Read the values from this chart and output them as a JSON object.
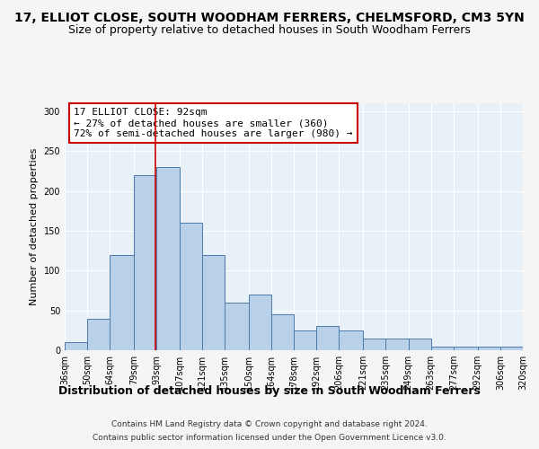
{
  "title": "17, ELLIOT CLOSE, SOUTH WOODHAM FERRERS, CHELMSFORD, CM3 5YN",
  "subtitle": "Size of property relative to detached houses in South Woodham Ferrers",
  "xlabel": "Distribution of detached houses by size in South Woodham Ferrers",
  "ylabel": "Number of detached properties",
  "footer_line1": "Contains HM Land Registry data © Crown copyright and database right 2024.",
  "footer_line2": "Contains public sector information licensed under the Open Government Licence v3.0.",
  "annotation_line1": "17 ELLIOT CLOSE: 92sqm",
  "annotation_line2": "← 27% of detached houses are smaller (360)",
  "annotation_line3": "72% of semi-detached houses are larger (980) →",
  "property_size": 92,
  "bar_edges": [
    36,
    50,
    64,
    79,
    93,
    107,
    121,
    135,
    150,
    164,
    178,
    192,
    206,
    221,
    235,
    249,
    263,
    277,
    292,
    306,
    320
  ],
  "bar_heights": [
    10,
    40,
    120,
    220,
    230,
    160,
    120,
    60,
    70,
    45,
    25,
    30,
    25,
    15,
    15,
    15,
    5,
    5,
    5,
    5
  ],
  "bar_color": "#b8d0e8",
  "bar_edge_color": "#4a7aab",
  "vline_color": "#cc0000",
  "vline_x": 92,
  "annotation_box_color": "#cc0000",
  "bg_color": "#e8f0f8",
  "fig_bg_color": "#f5f5f5",
  "ylim": [
    0,
    310
  ],
  "yticks": [
    0,
    50,
    100,
    150,
    200,
    250,
    300
  ],
  "title_fontsize": 10,
  "subtitle_fontsize": 9,
  "xlabel_fontsize": 9,
  "ylabel_fontsize": 8,
  "tick_fontsize": 7,
  "footer_fontsize": 6.5,
  "annotation_fontsize": 8
}
